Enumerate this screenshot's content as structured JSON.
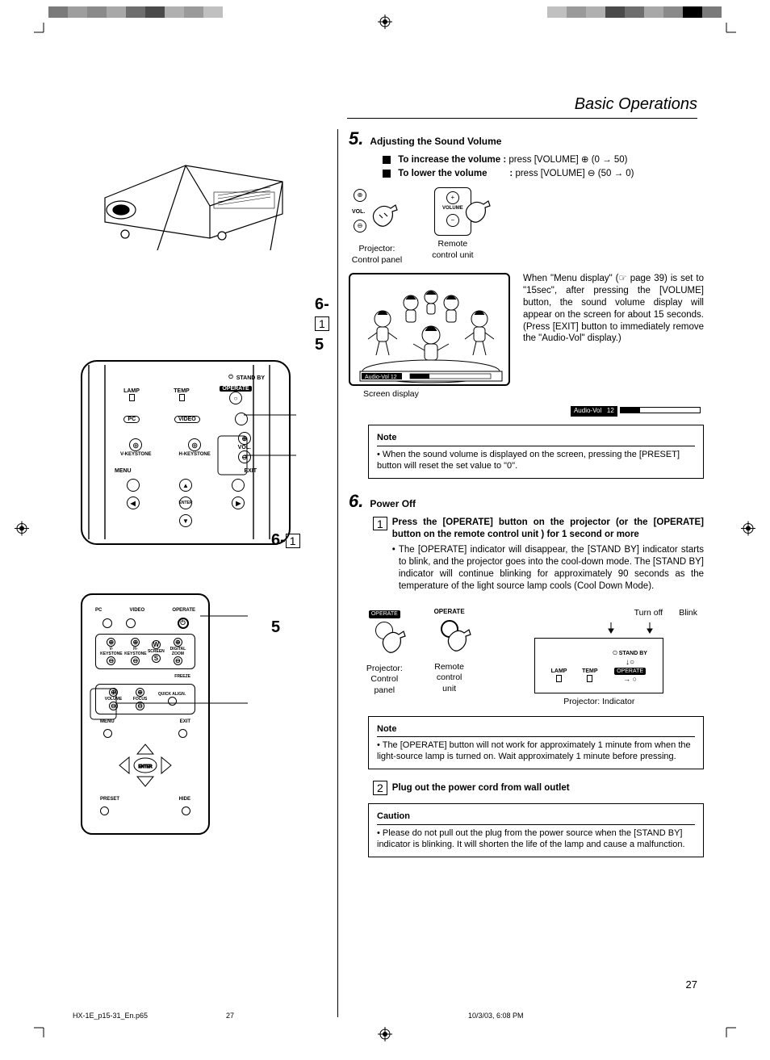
{
  "colorbar": [
    "#7a7a7a",
    "#9e9e9e",
    "#8a8a8a",
    "#a8a8a8",
    "#6e6e6e",
    "#4a4a4a",
    "#b0b0b0",
    "#9a9a9a",
    "#c0c0c0"
  ],
  "colorbar_right": [
    "#c0c0c0",
    "#9a9a9a",
    "#b0b0b0",
    "#4a4a4a",
    "#6e6e6e",
    "#a8a8a8",
    "#8a8a8a",
    "#000000",
    "#7a7a7a"
  ],
  "page_title": "Basic Operations",
  "callouts": {
    "a": "6-",
    "a_box": "1",
    "b": "5",
    "c": "6-",
    "c_box": "1",
    "d": "5"
  },
  "panel_labels": {
    "standby": "STAND BY",
    "operate": "OPERATE",
    "lamp": "LAMP",
    "temp": "TEMP",
    "pc": "PC",
    "video": "VIDEO",
    "vkey": "V-KEYSTONE",
    "hkey": "H-KEYSTONE",
    "vol": "VOL.",
    "menu": "MENU",
    "exit": "EXIT",
    "enter": "ENTER"
  },
  "remote_labels": {
    "pc": "PC",
    "video": "VIDEO",
    "operate": "OPERATE",
    "vkey": "V-KEYSTONE",
    "hkey": "H-KEYSTONE",
    "screen": "SCREEN",
    "dzoom": "DIGITAL ZOOM",
    "freeze": "FREEZE",
    "volume": "VOLUME",
    "focus": "FOCUS",
    "qalign": "QUICK ALIGN.",
    "menu": "MENU",
    "exit": "EXIT",
    "enter": "ENTER",
    "preset": "PRESET",
    "hide": "HIDE"
  },
  "step5": {
    "num": "5.",
    "title": "Adjusting the Sound Volume",
    "inc_label": "To increase the volume :",
    "inc_text": "press [VOLUME] ⊕ (0 → 50)",
    "dec_label": "To lower the volume",
    "dec_colon": ":",
    "dec_text": "press [VOLUME] ⊖ (50 → 0)",
    "proj_cp": "Projector:\nControl panel",
    "remote": "Remote\ncontrol unit",
    "vol_small": "VOL.",
    "volume_box": "VOLUME",
    "para": "When \"Menu display\" (☞ page 39) is set to \"15sec\", after pressing the [VOLUME] button, the sound volume display will appear on the screen for about 15 seconds. (Press [EXIT] button to immediately remove the \"Audio-Vol\" display.)",
    "screen_caption": "Screen display",
    "audiovol_label": "Audio-Vol",
    "audiovol_value": "12",
    "note_hd": "Note",
    "note_text": "When the sound volume is displayed on the screen, pressing the [PRESET] button will reset the set value to \"0\"."
  },
  "step6": {
    "num": "6.",
    "title": "Power Off",
    "sub1_box": "1",
    "sub1_title": "Press the [OPERATE] button on the projector (or the [OPERATE] button on the remote control unit ) for  1 second or more",
    "sub1_bullet": "The [OPERATE] indicator will disappear, the [STAND BY] indicator starts to blink, and the projector goes into the cool-down mode. The [STAND BY] indicator will continue blinking for approximately 90 seconds as the temperature of the light source lamp cools (Cool Down Mode).",
    "operate_pill": "OPERATE",
    "operate_label": "OPERATE",
    "proj_cp": "Projector:\nControl panel",
    "remote": "Remote\ncontrol unit",
    "ind_caption": "Projector: Indicator",
    "turnoff": "Turn off",
    "blink": "Blink",
    "standby": "STAND BY",
    "lamp": "LAMP",
    "temp": "TEMP",
    "note_hd": "Note",
    "note_text": "The [OPERATE] button will not work for approximately 1 minute from when the light-source lamp is turned on. Wait approximately 1 minute before pressing.",
    "sub2_box": "2",
    "sub2_title": "Plug out the power cord from wall outlet",
    "caution_hd": "Caution",
    "caution_text": "Please do not pull out the plug from the power source when the [STAND BY] indicator is blinking. It will shorten the life of the lamp and cause a malfunction."
  },
  "page_num": "27",
  "footer": {
    "file": "HX-1E_p15-31_En.p65",
    "page": "27",
    "date": "10/3/03, 6:08 PM"
  }
}
